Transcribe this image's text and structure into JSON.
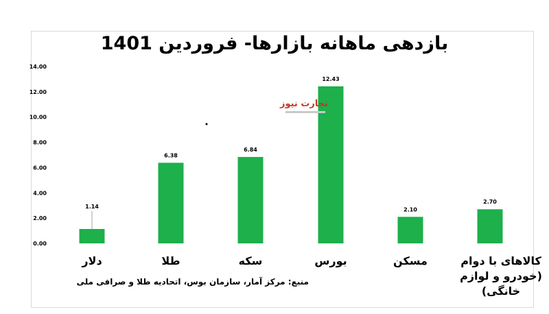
{
  "chart_data": {
    "type": "bar",
    "title": "بازدهی ماهانه بازارها- فروردین 1401",
    "categories": [
      "دلار",
      "طلا",
      "سکه",
      "بورس",
      "مسکن",
      "کالاهای با دوام (خودرو و لوازم خانگی)"
    ],
    "values": [
      1.14,
      6.38,
      6.84,
      12.43,
      2.1,
      2.7
    ],
    "data_labels": [
      "1.14",
      "6.38",
      "6.84",
      "12.43",
      "2.10",
      "2.70"
    ],
    "ylim": [
      0,
      14
    ],
    "yticks": [
      0,
      2,
      4,
      6,
      8,
      10,
      12,
      14
    ],
    "ytick_labels": [
      "0.00",
      "2.00",
      "4.00",
      "6.00",
      "8.00",
      "10.00",
      "12.00",
      "14.00"
    ],
    "xlabel": "",
    "ylabel": "",
    "grid": false,
    "legend": "none",
    "bar_color": "#1db04b"
  },
  "source_note": "منبع: مرکز آمار، سازمان بوس، اتحادیه طلا و صرافی ملی",
  "watermark": {
    "text": "تجارت نیوز",
    "icon": "tejarat-news-logo"
  }
}
